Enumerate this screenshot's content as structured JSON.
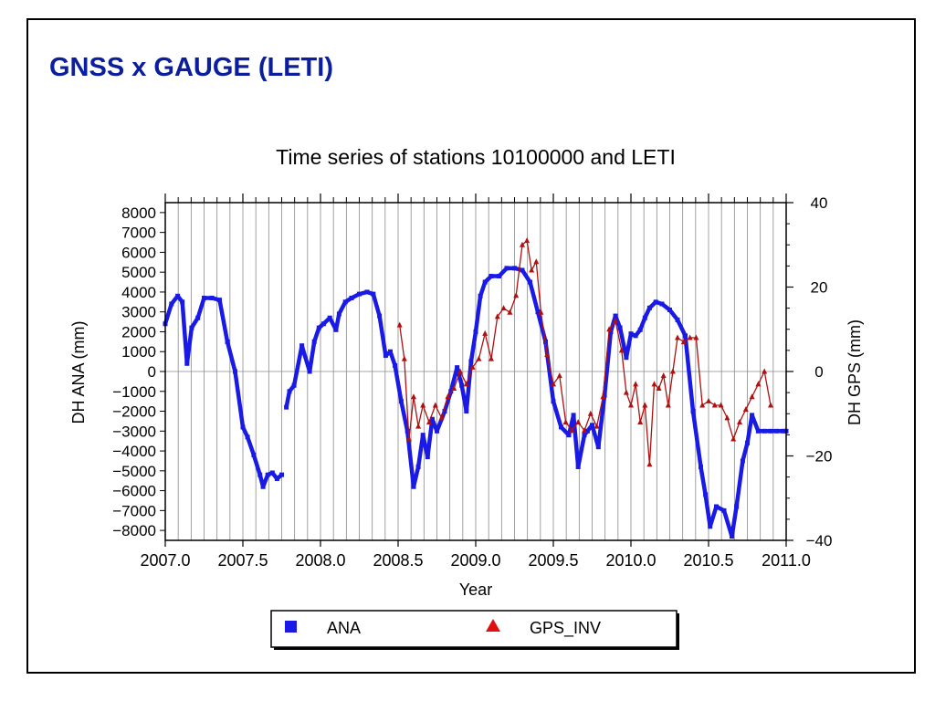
{
  "slide": {
    "title": "GNSS x GAUGE (LETI)"
  },
  "chart_data": {
    "type": "line",
    "title": "Time series of stations 10100000 and LETI",
    "xlabel": "Year",
    "ylabel_left": "DH ANA (mm)",
    "ylabel_right": "DH GPS (mm)",
    "xlim": [
      2007.0,
      2011.0
    ],
    "ylim_left": [
      -8500,
      8500
    ],
    "ylim_right": [
      -40,
      40
    ],
    "x_ticks": [
      "2007.0",
      "2007.5",
      "2008.0",
      "2008.5",
      "2009.0",
      "2009.5",
      "2010.0",
      "2010.5",
      "2011.0"
    ],
    "y_ticks_left": [
      8000,
      7000,
      6000,
      5000,
      4000,
      3000,
      2000,
      1000,
      0,
      -1000,
      -2000,
      -3000,
      -4000,
      -5000,
      -6000,
      -7000,
      -8000
    ],
    "y_ticks_right": [
      40,
      20,
      0,
      -20,
      -40
    ],
    "y_tick_labels_right": [
      "40",
      "20",
      "0",
      "−20",
      "−40"
    ],
    "grid": "vertical monthly lines",
    "legend_position": "bottom",
    "series": [
      {
        "name": "ANA",
        "axis": "left",
        "color": "#1a1ae6",
        "marker": "square",
        "x": [
          2007.0,
          2007.04,
          2007.08,
          2007.11,
          2007.14,
          2007.17,
          2007.21,
          2007.25,
          2007.3,
          2007.35,
          2007.4,
          2007.45,
          2007.5,
          2007.53,
          2007.57,
          2007.61,
          2007.63,
          2007.66,
          2007.69,
          2007.72,
          2007.75,
          2007.78,
          2007.8,
          2007.83,
          2007.88,
          2007.93,
          2007.96,
          2007.99,
          2008.02,
          2008.06,
          2008.1,
          2008.12,
          2008.16,
          2008.2,
          2008.25,
          2008.3,
          2008.34,
          2008.38,
          2008.42,
          2008.45,
          2008.48,
          2008.52,
          2008.56,
          2008.6,
          2008.63,
          2008.66,
          2008.69,
          2008.72,
          2008.75,
          2008.8,
          2008.84,
          2008.88,
          2008.91,
          2008.94,
          2008.97,
          2009.0,
          2009.03,
          2009.06,
          2009.1,
          2009.15,
          2009.2,
          2009.25,
          2009.3,
          2009.35,
          2009.4,
          2009.45,
          2009.5,
          2009.55,
          2009.6,
          2009.63,
          2009.66,
          2009.7,
          2009.72,
          2009.75,
          2009.79,
          2009.83,
          2009.87,
          2009.9,
          2009.93,
          2009.97,
          2010.0,
          2010.03,
          2010.06,
          2010.09,
          2010.12,
          2010.16,
          2010.2,
          2010.25,
          2010.3,
          2010.35,
          2010.4,
          2010.45,
          2010.48,
          2010.51,
          2010.55,
          2010.6,
          2010.65,
          2010.68,
          2010.72,
          2010.75,
          2010.78,
          2010.82,
          2010.86,
          2010.9,
          2010.94,
          2010.98,
          2011.0
        ],
        "y": [
          2400,
          3400,
          3800,
          3500,
          400,
          2200,
          2700,
          3700,
          3700,
          3600,
          1500,
          0,
          -2800,
          -3300,
          -4200,
          -5200,
          -5800,
          -5200,
          -5100,
          -5400,
          -5200,
          -1800,
          -1000,
          -700,
          1300,
          0,
          1500,
          2200,
          2400,
          2700,
          2100,
          2900,
          3500,
          3700,
          3900,
          4000,
          3900,
          2800,
          800,
          1000,
          300,
          -1500,
          -3000,
          -5800,
          -4800,
          -3200,
          -4300,
          -2400,
          -3000,
          -2000,
          -1000,
          200,
          -700,
          -2000,
          500,
          2000,
          3800,
          4500,
          4800,
          4800,
          5200,
          5200,
          5100,
          4500,
          3000,
          1500,
          -1500,
          -2800,
          -3200,
          -2200,
          -4800,
          -3200,
          -3000,
          -2700,
          -3800,
          -1200,
          2000,
          2800,
          2200,
          700,
          1900,
          1800,
          2100,
          2700,
          3200,
          3500,
          3400,
          3100,
          2600,
          1800,
          -2000,
          -4800,
          -6200,
          -7800,
          -6800,
          -7000,
          -8300,
          -6800,
          -4500,
          -3600,
          -2200,
          -3000,
          -3000,
          -3000,
          -3000,
          -3000,
          -3000
        ],
        "gaps_after_index": [
          20
        ]
      },
      {
        "name": "GPS_INV",
        "axis": "right",
        "color": "#b01010",
        "marker": "triangle",
        "x": [
          2008.51,
          2008.54,
          2008.57,
          2008.6,
          2008.63,
          2008.66,
          2008.7,
          2008.74,
          2008.78,
          2008.82,
          2008.86,
          2008.9,
          2008.94,
          2008.98,
          2009.02,
          2009.06,
          2009.1,
          2009.14,
          2009.18,
          2009.22,
          2009.26,
          2009.3,
          2009.33,
          2009.36,
          2009.39,
          2009.42,
          2009.46,
          2009.5,
          2009.54,
          2009.58,
          2009.62,
          2009.66,
          2009.7,
          2009.74,
          2009.78,
          2009.82,
          2009.86,
          2009.9,
          2009.94,
          2009.97,
          2010.0,
          2010.03,
          2010.06,
          2010.09,
          2010.12,
          2010.15,
          2010.18,
          2010.21,
          2010.24,
          2010.27,
          2010.3,
          2010.34,
          2010.38,
          2010.42,
          2010.46,
          2010.5,
          2010.54,
          2010.58,
          2010.62,
          2010.66,
          2010.7,
          2010.74,
          2010.78,
          2010.82,
          2010.86,
          2010.9
        ],
        "y": [
          11,
          3,
          -16,
          -6,
          -13,
          -8,
          -12,
          -8,
          -11,
          -6,
          -4,
          0,
          -3,
          1,
          3,
          9,
          3,
          13,
          15,
          14,
          18,
          30,
          31,
          24,
          26,
          14,
          4,
          -3,
          -1,
          -12,
          -14,
          -12,
          -14,
          -10,
          -13,
          -6,
          10,
          12,
          5,
          -5,
          -8,
          -3,
          -12,
          -8,
          -22,
          -3,
          -4,
          -1,
          -8,
          0,
          8,
          7,
          8,
          8,
          -8,
          -7,
          -8,
          -8,
          -11,
          -16,
          -12,
          -9,
          -6,
          -3,
          0,
          -8
        ]
      }
    ]
  }
}
